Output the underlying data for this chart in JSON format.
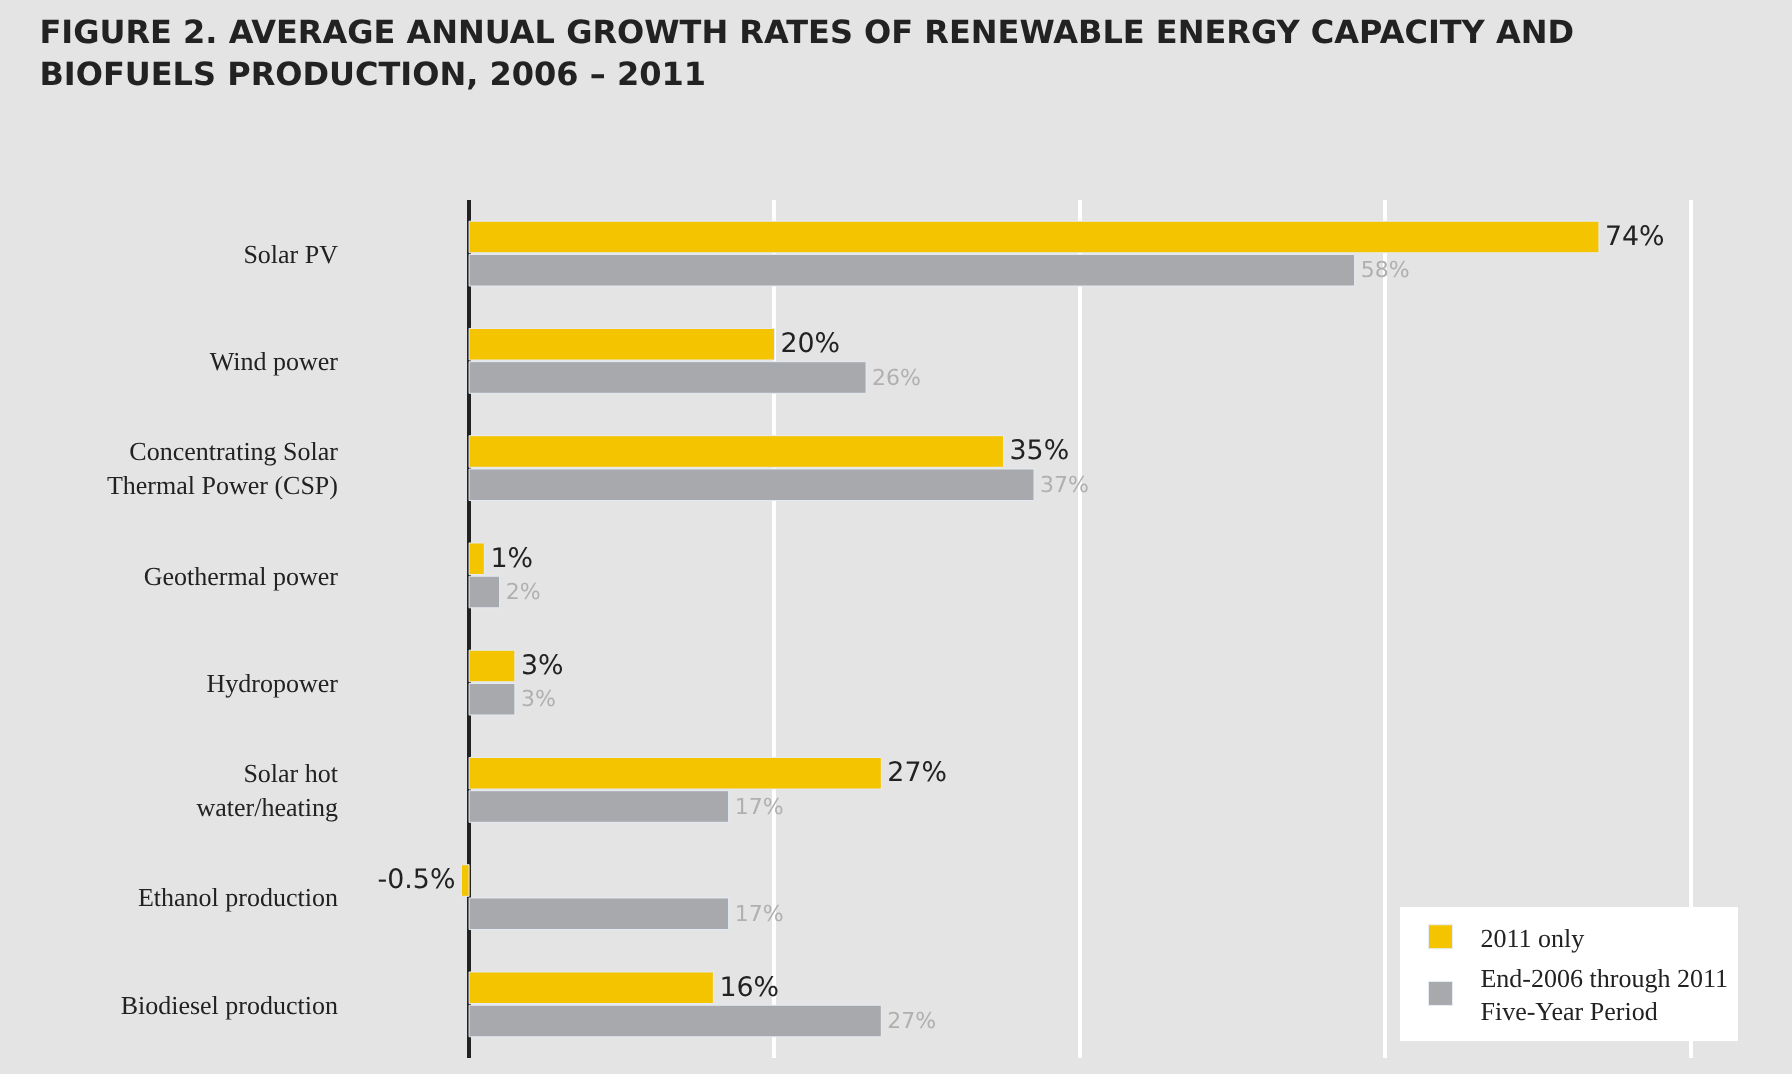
{
  "chart_data": {
    "type": "bar",
    "orientation": "horizontal",
    "title": "FIGURE 2. AVERAGE ANNUAL GROWTH RATES OF RENEWABLE ENERGY CAPACITY AND\nBIOFUELS PRODUCTION, 2006 – 2011",
    "categories": [
      "Solar PV",
      "Wind power",
      "Concentrating Solar\nThermal Power (CSP)",
      "Geothermal power",
      "Hydropower",
      "Solar hot\nwater/heating",
      "Ethanol production",
      "Biodiesel production"
    ],
    "series": [
      {
        "name": "2011 only",
        "color": "#f5c400",
        "values": [
          74,
          20,
          35,
          1,
          3,
          27,
          -0.5,
          16
        ],
        "value_labels": [
          "74%",
          "20%",
          "35%",
          "1%",
          "3%",
          "27%",
          "-0.5%",
          "16%"
        ]
      },
      {
        "name": "End-2006 through 2011\nFive-Year Period",
        "color": "#a7a9ac",
        "values": [
          58,
          26,
          37,
          2,
          3,
          17,
          17,
          27
        ],
        "value_labels": [
          "58%",
          "26%",
          "37%",
          "2%",
          "3%",
          "17%",
          "17%",
          "27%"
        ]
      }
    ],
    "xticks": [
      {
        "value": 20,
        "label": null
      },
      {
        "value": 40,
        "label": null
      },
      {
        "value": 60,
        "label": null
      },
      {
        "value": 80,
        "label": null
      }
    ],
    "tick_labels": "y",
    "grid": "x",
    "legend": "bottom right"
  }
}
